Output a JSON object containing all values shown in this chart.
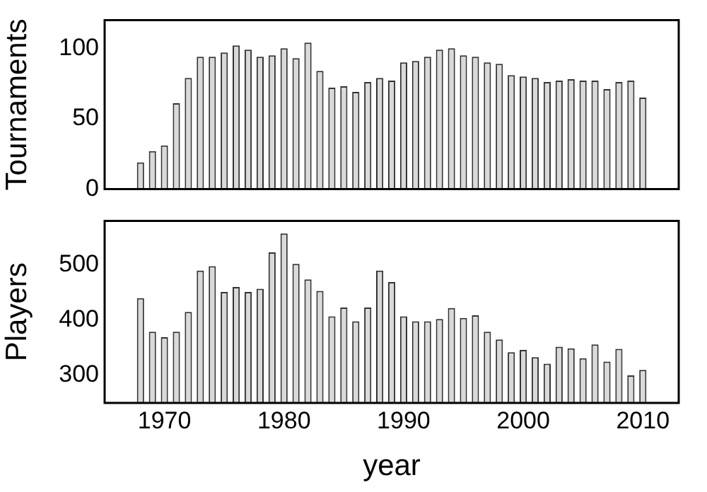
{
  "chart_data": [
    {
      "type": "bar",
      "ylabel": "Tournaments",
      "color": "#d9d9d9",
      "x": [
        1968,
        1969,
        1970,
        1971,
        1972,
        1973,
        1974,
        1975,
        1976,
        1977,
        1978,
        1979,
        1980,
        1981,
        1982,
        1983,
        1984,
        1985,
        1986,
        1987,
        1988,
        1989,
        1990,
        1991,
        1992,
        1993,
        1994,
        1995,
        1996,
        1997,
        1998,
        1999,
        2000,
        2001,
        2002,
        2003,
        2004,
        2005,
        2006,
        2007,
        2008,
        2009,
        2010
      ],
      "values": [
        19,
        27,
        31,
        61,
        79,
        94,
        94,
        97,
        102,
        99,
        94,
        95,
        100,
        93,
        104,
        84,
        72,
        73,
        69,
        76,
        79,
        77,
        90,
        91,
        94,
        99,
        100,
        95,
        94,
        90,
        89,
        81,
        80,
        79,
        76,
        77,
        78,
        77,
        77,
        71,
        76,
        77,
        65
      ],
      "xlim": [
        1965,
        2013
      ],
      "xticks": [
        1970,
        1980,
        1990,
        2000,
        2010
      ],
      "ylim": [
        0,
        120
      ],
      "yticks": [
        0,
        50,
        100
      ],
      "tick_labels": "y"
    },
    {
      "type": "bar",
      "ylabel": "Players",
      "xlabel": "year",
      "color": "#d9d9d9",
      "x": [
        1968,
        1969,
        1970,
        1971,
        1972,
        1973,
        1974,
        1975,
        1976,
        1977,
        1978,
        1979,
        1980,
        1981,
        1982,
        1983,
        1984,
        1985,
        1986,
        1987,
        1988,
        1989,
        1990,
        1991,
        1992,
        1993,
        1994,
        1995,
        1996,
        1997,
        1998,
        1999,
        2000,
        2001,
        2002,
        2003,
        2004,
        2005,
        2006,
        2007,
        2008,
        2009,
        2010
      ],
      "values": [
        440,
        379,
        369,
        379,
        415,
        490,
        498,
        451,
        460,
        451,
        457,
        523,
        557,
        502,
        474,
        453,
        407,
        423,
        398,
        423,
        490,
        469,
        407,
        398,
        398,
        402,
        422,
        404,
        409,
        379,
        365,
        342,
        346,
        333,
        321,
        352,
        349,
        331,
        356,
        325,
        348,
        300,
        310
      ],
      "xlim": [
        1965,
        2013
      ],
      "xticks": [
        1970,
        1980,
        1990,
        2000,
        2010
      ],
      "ylim": [
        250,
        580
      ],
      "yticks": [
        300,
        400,
        500
      ]
    }
  ]
}
